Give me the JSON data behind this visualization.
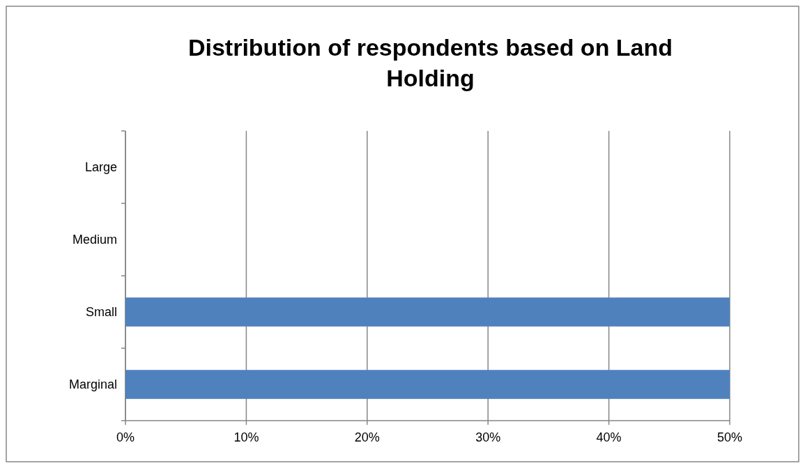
{
  "chart_data": {
    "type": "bar",
    "orientation": "horizontal",
    "title": "Distribution of respondents based on Land Holding",
    "categories": [
      "Large",
      "Medium",
      "Small",
      "Marginal"
    ],
    "values": [
      0,
      0,
      50,
      50
    ],
    "color": "#4f81bd",
    "xlim": [
      0,
      50
    ],
    "xticks": [
      {
        "value": 0,
        "label": "0%"
      },
      {
        "value": 10,
        "label": "10%"
      },
      {
        "value": 20,
        "label": "20%"
      },
      {
        "value": 30,
        "label": "30%"
      },
      {
        "value": 40,
        "label": "40%"
      },
      {
        "value": 50,
        "label": "50%"
      }
    ],
    "grid": "x"
  }
}
